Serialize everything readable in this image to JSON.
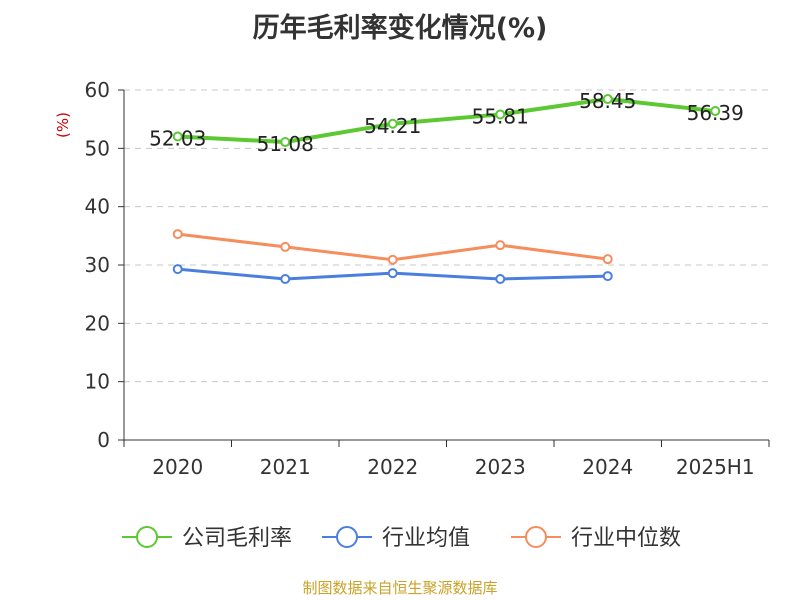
{
  "chart_data": {
    "type": "line",
    "title": "历年毛利率变化情况(%)",
    "ylabel": "(%)",
    "xlabel": "",
    "categories": [
      "2020",
      "2021",
      "2022",
      "2023",
      "2024",
      "2025H1"
    ],
    "ylim": [
      0,
      60
    ],
    "yticks": [
      0,
      10,
      20,
      30,
      40,
      50,
      60
    ],
    "grid": true,
    "legend_position": "bottom",
    "series": [
      {
        "name": "公司毛利率",
        "color": "#5cc832",
        "values": [
          52.03,
          51.08,
          54.21,
          55.81,
          58.45,
          56.39
        ],
        "show_labels": true
      },
      {
        "name": "行业均值",
        "color": "#4a7fe0",
        "values": [
          29.3,
          27.6,
          28.6,
          27.6,
          28.1,
          null
        ],
        "show_labels": false
      },
      {
        "name": "行业中位数",
        "color": "#f58d5d",
        "values": [
          35.3,
          33.1,
          30.9,
          33.4,
          31.0,
          null
        ],
        "show_labels": false
      }
    ]
  },
  "source": "制图数据来自恒生聚源数据库"
}
